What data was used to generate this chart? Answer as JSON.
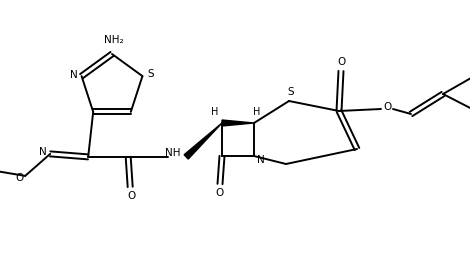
{
  "background_color": "#ffffff",
  "line_color": "#000000",
  "line_width": 1.4,
  "figsize": [
    4.7,
    2.71
  ],
  "dpi": 100,
  "xlim": [
    0,
    470
  ],
  "ylim": [
    0,
    271
  ]
}
